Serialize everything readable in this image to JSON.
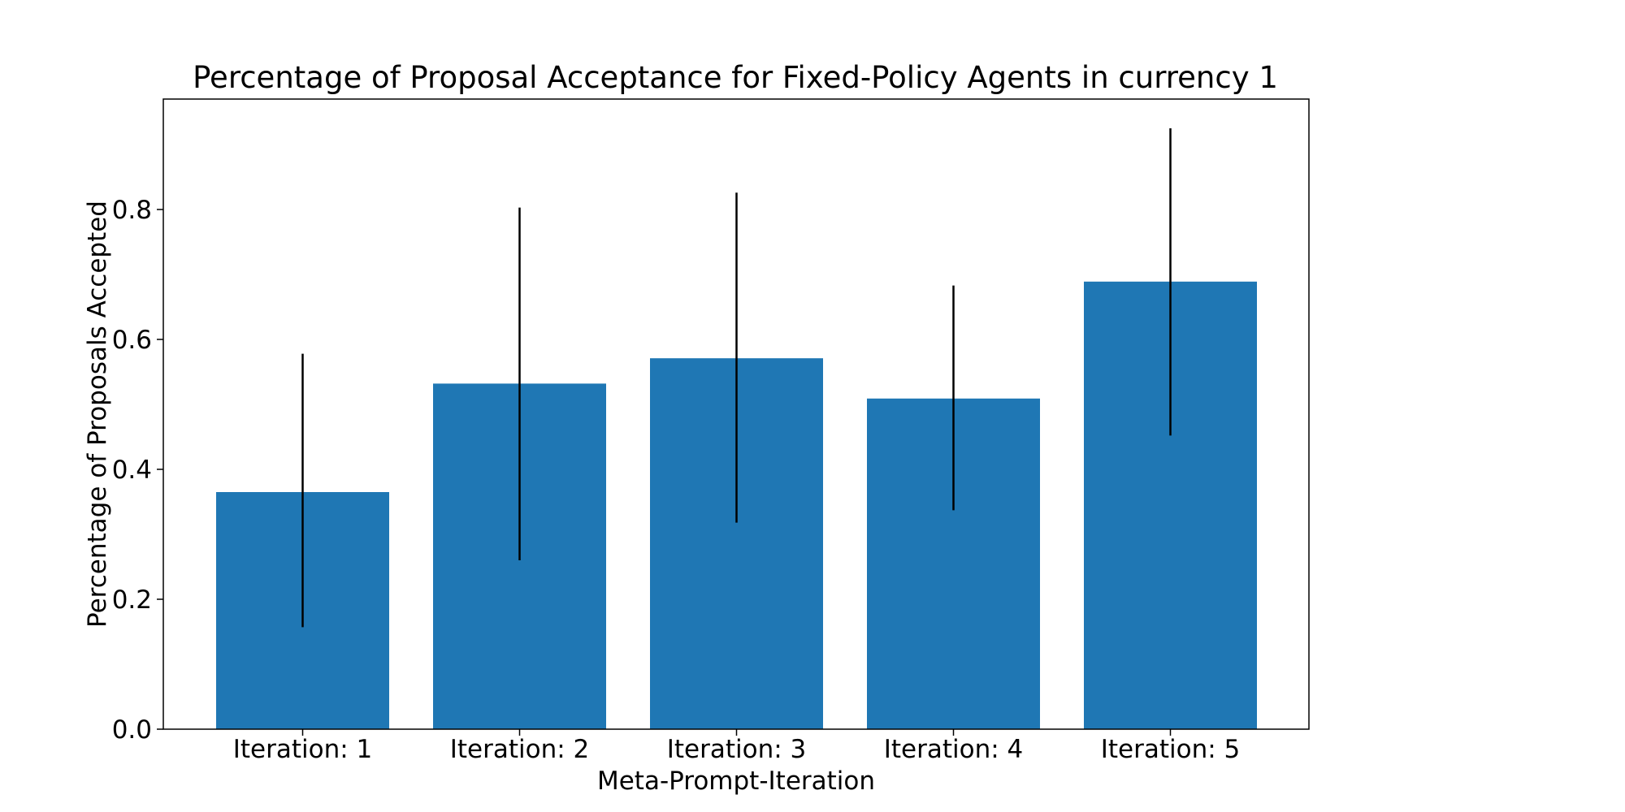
{
  "chart_data": {
    "type": "bar",
    "title": "Percentage of Proposal Acceptance for Fixed-Policy Agents in currency 1",
    "xlabel": "Meta-Prompt-Iteration",
    "ylabel": "Percentage of Proposals Accepted",
    "categories": [
      "Iteration: 1",
      "Iteration: 2",
      "Iteration: 3",
      "Iteration: 4",
      "Iteration: 5"
    ],
    "values": [
      0.365,
      0.532,
      0.571,
      0.509,
      0.689
    ],
    "error_low": [
      0.157,
      0.26,
      0.318,
      0.337,
      0.452
    ],
    "error_high": [
      0.578,
      0.803,
      0.826,
      0.683,
      0.925
    ],
    "ylim": [
      0,
      0.97
    ],
    "yticks": [
      0.0,
      0.2,
      0.4,
      0.6,
      0.8
    ],
    "ytick_labels": [
      "0.0",
      "0.2",
      "0.4",
      "0.6",
      "0.8"
    ],
    "bar_color": "#1f77b4",
    "error_color": "#000000",
    "grid": false,
    "legend": "none"
  }
}
